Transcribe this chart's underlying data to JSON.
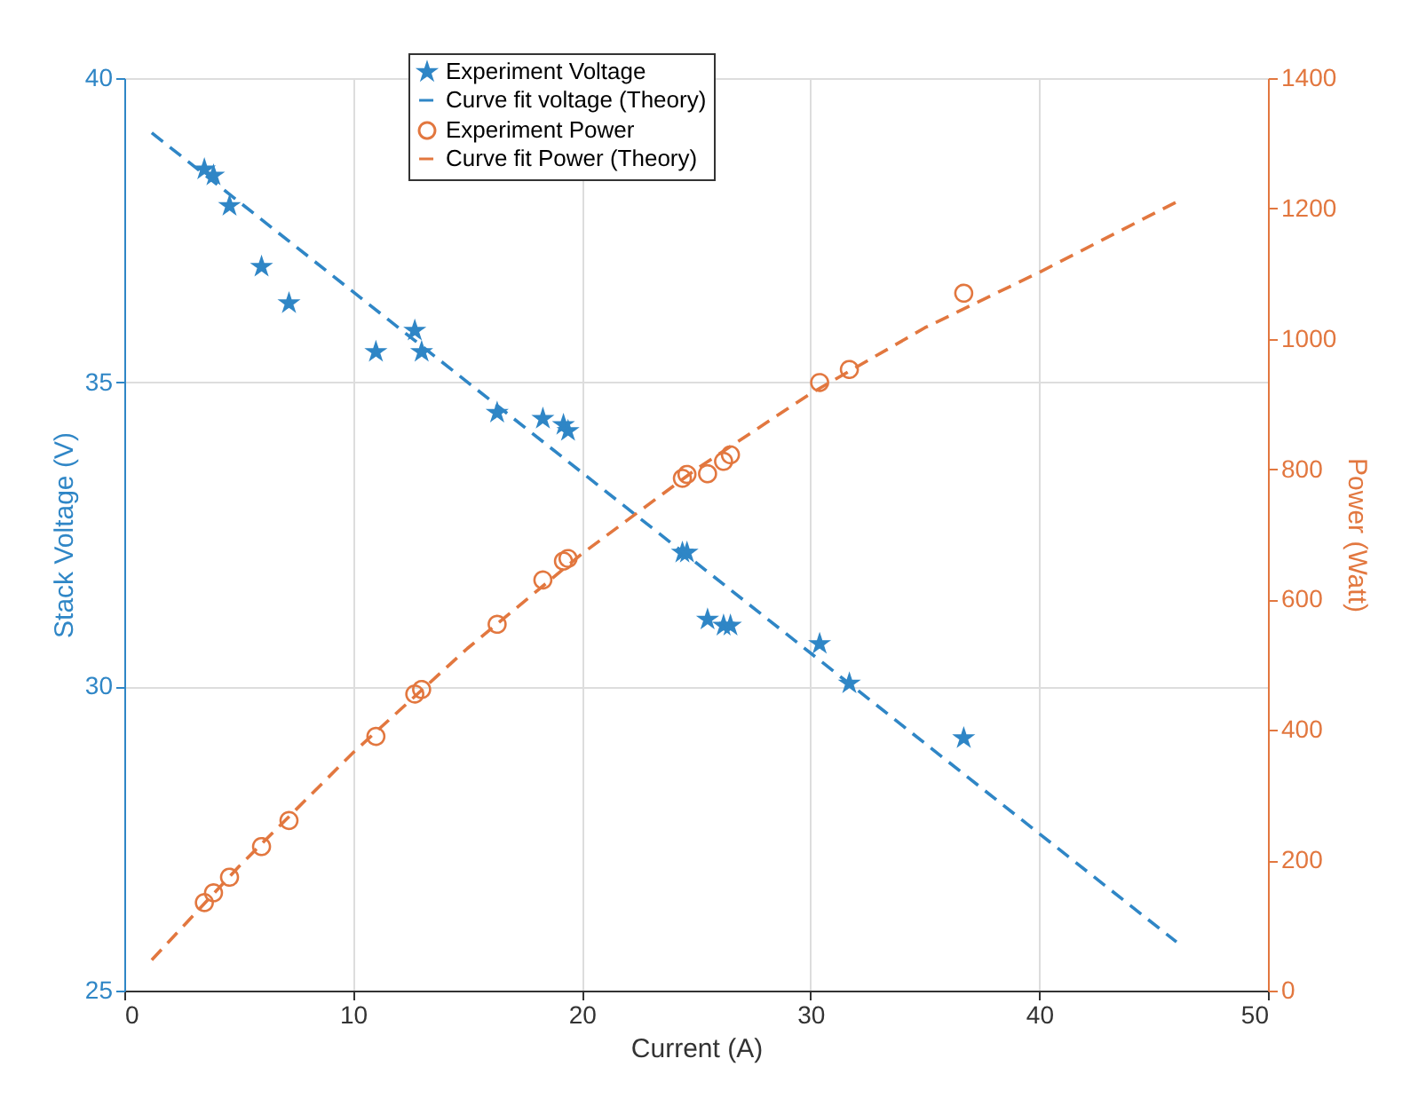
{
  "chart_data": {
    "type": "scatter",
    "xlabel": "Current (A)",
    "ylabel": "Stack Voltage (V)",
    "y2label": "Power (Watt)",
    "xlim": [
      0,
      50
    ],
    "xticks": [
      0,
      10,
      20,
      30,
      40,
      50
    ],
    "ylim": [
      25,
      40
    ],
    "yticks": [
      25,
      30,
      35,
      40
    ],
    "y2lim": [
      0,
      1400
    ],
    "y2ticks": [
      0,
      200,
      400,
      600,
      800,
      {
        "value": 1000,
        "label": "1000"
      },
      {
        "value": 1200,
        "label": "1200"
      },
      {
        "value": 1400,
        "label": "1400"
      }
    ],
    "grid": true,
    "legend": "top",
    "series": [
      {
        "name": "Experiment Voltage",
        "marker": "star",
        "color": "#2f86c6",
        "x": [
          3.5,
          3.9,
          4.6,
          6.0,
          7.2,
          11.0,
          12.7,
          13.0,
          16.3,
          18.3,
          19.2,
          19.4,
          24.4,
          24.6,
          25.5,
          26.2,
          26.5,
          30.4,
          31.7,
          36.7
        ],
        "values": [
          38.5,
          38.4,
          37.9,
          36.9,
          36.3,
          35.5,
          35.85,
          35.5,
          34.5,
          34.4,
          34.3,
          34.2,
          32.2,
          32.2,
          31.1,
          31.0,
          31.0,
          30.7,
          30.05,
          29.15
        ]
      },
      {
        "name": "Curve fit voltage (Theory)",
        "type": "line",
        "line_style": "dashed",
        "color": "#2f86c6",
        "x": [
          1.2,
          46
        ],
        "values": [
          39.1,
          25.8
        ]
      },
      {
        "name": "Experiment Power",
        "marker": "circle",
        "axis": "y2",
        "color": "#e2773f",
        "x": [
          3.5,
          3.9,
          4.6,
          6.0,
          7.2,
          11.0,
          12.7,
          13.0,
          16.3,
          18.3,
          19.2,
          19.4,
          24.4,
          24.6,
          25.5,
          26.2,
          26.5,
          30.4,
          31.7,
          36.7
        ],
        "values": [
          135,
          150,
          174,
          221,
          261,
          390,
          455,
          462,
          562,
          630,
          659,
          663,
          786,
          792,
          793,
          812,
          822,
          933,
          953,
          1070
        ]
      },
      {
        "name": "Curve fit Power (Theory)",
        "type": "line",
        "line_style": "dashed",
        "axis": "y2",
        "color": "#e2773f",
        "x": [
          1.2,
          5,
          10,
          15,
          20,
          25,
          30,
          35,
          40,
          46
        ],
        "values": [
          47,
          190,
          365,
          525,
          670,
          800,
          916,
          1017,
          1102,
          1210
        ]
      }
    ]
  }
}
